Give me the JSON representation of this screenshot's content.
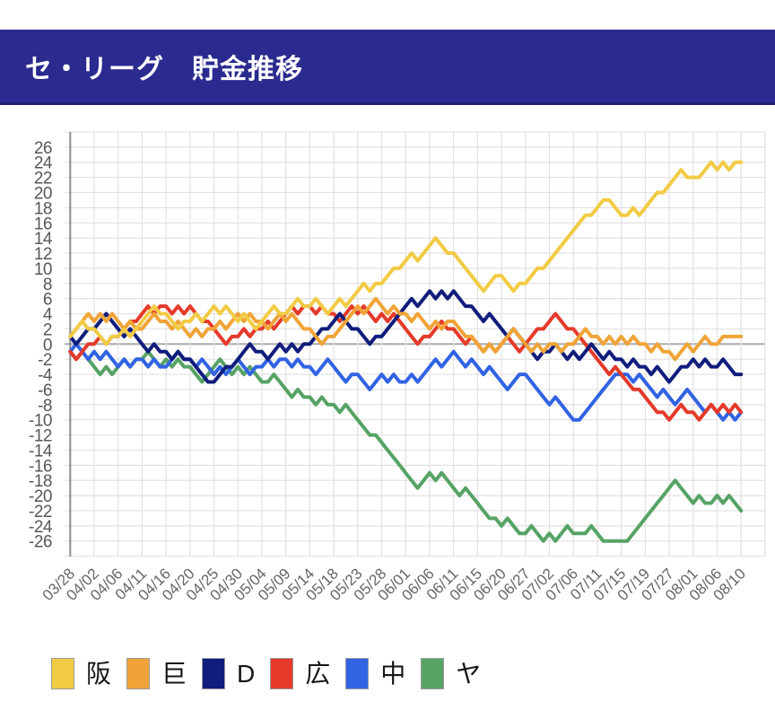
{
  "header": {
    "title": "セ・リーグ　貯金推移"
  },
  "chart_data": {
    "type": "line",
    "title": "セ・リーグ　貯金推移",
    "xlabel": "",
    "ylabel": "",
    "ylim": [
      -26,
      26
    ],
    "y_axis": {
      "min": -26,
      "max": 26,
      "step": 2,
      "labels": [
        "26",
        "24",
        "22",
        "20",
        "18",
        "16",
        "14",
        "12",
        "10",
        "8",
        "6",
        "4",
        "2",
        "0",
        "-2",
        "-4",
        "-6",
        "-8",
        "-10",
        "-12",
        "-14",
        "-16",
        "-18",
        "-20",
        "-22",
        "-24",
        "-26"
      ]
    },
    "x_axis": {
      "labels": [
        "03/28",
        "04/02",
        "04/06",
        "04/11",
        "04/16",
        "04/20",
        "04/25",
        "04/30",
        "05/04",
        "05/09",
        "05/14",
        "05/18",
        "05/23",
        "05/28",
        "06/01",
        "06/06",
        "06/11",
        "06/15",
        "06/20",
        "06/27",
        "07/02",
        "07/06",
        "07/11",
        "07/15",
        "07/19",
        "07/27",
        "08/01",
        "08/06",
        "08/10"
      ],
      "points_per_label": 4
    },
    "grid": true,
    "legend_position": "bottom",
    "series": [
      {
        "key": "hanshin",
        "name": "阪",
        "color": "#F2CB44",
        "values": [
          1,
          2,
          3,
          2,
          2,
          1,
          0,
          1,
          1,
          2,
          1,
          2,
          3,
          4,
          5,
          4,
          4,
          3,
          2,
          3,
          3,
          4,
          3,
          4,
          5,
          4,
          5,
          4,
          3,
          4,
          3,
          2,
          3,
          4,
          5,
          4,
          4,
          5,
          6,
          5,
          5,
          6,
          5,
          4,
          5,
          6,
          5,
          6,
          7,
          8,
          7,
          8,
          8,
          9,
          10,
          10,
          11,
          12,
          11,
          12,
          13,
          14,
          13,
          12,
          12,
          11,
          10,
          9,
          8,
          7,
          8,
          9,
          9,
          8,
          7,
          8,
          8,
          9,
          10,
          10,
          11,
          12,
          13,
          14,
          15,
          16,
          17,
          17,
          18,
          19,
          19,
          18,
          17,
          17,
          18,
          17,
          18,
          19,
          20,
          20,
          21,
          22,
          23,
          22,
          22,
          22,
          23,
          24,
          23,
          24,
          23,
          24,
          24
        ]
      },
      {
        "key": "kyojin",
        "name": "巨",
        "color": "#F0A437",
        "values": [
          1,
          2,
          3,
          4,
          3,
          4,
          3,
          4,
          3,
          2,
          3,
          2,
          2,
          3,
          4,
          3,
          3,
          2,
          3,
          2,
          1,
          2,
          1,
          2,
          2,
          3,
          2,
          3,
          4,
          3,
          4,
          3,
          3,
          2,
          3,
          4,
          3,
          4,
          3,
          2,
          2,
          1,
          0,
          1,
          1,
          2,
          3,
          4,
          5,
          4,
          5,
          6,
          5,
          4,
          5,
          4,
          4,
          3,
          4,
          3,
          2,
          3,
          2,
          3,
          3,
          2,
          1,
          1,
          0,
          -1,
          0,
          -1,
          0,
          1,
          2,
          1,
          0,
          -1,
          0,
          -1,
          0,
          0,
          -1,
          0,
          0,
          1,
          2,
          1,
          1,
          0,
          1,
          0,
          1,
          0,
          1,
          0,
          0,
          -1,
          0,
          -1,
          -1,
          -2,
          -1,
          0,
          -1,
          0,
          1,
          0,
          0,
          1,
          1,
          1,
          1
        ]
      },
      {
        "key": "dena",
        "name": "D",
        "color": "#101D7C",
        "values": [
          1,
          0,
          1,
          2,
          2,
          3,
          4,
          3,
          2,
          1,
          2,
          1,
          0,
          -1,
          0,
          -1,
          -1,
          -2,
          -1,
          -2,
          -2,
          -3,
          -4,
          -5,
          -5,
          -4,
          -3,
          -3,
          -2,
          -1,
          0,
          -1,
          -1,
          -2,
          -1,
          0,
          -1,
          0,
          -1,
          0,
          0,
          1,
          2,
          2,
          3,
          4,
          3,
          2,
          2,
          1,
          0,
          1,
          1,
          2,
          3,
          4,
          5,
          6,
          5,
          6,
          7,
          6,
          7,
          6,
          7,
          6,
          5,
          5,
          4,
          3,
          4,
          3,
          2,
          1,
          2,
          1,
          0,
          -1,
          -2,
          -1,
          -1,
          0,
          -1,
          -2,
          -1,
          -2,
          -1,
          0,
          -1,
          -2,
          -1,
          -2,
          -2,
          -3,
          -2,
          -3,
          -3,
          -4,
          -3,
          -4,
          -5,
          -4,
          -3,
          -3,
          -2,
          -3,
          -2,
          -3,
          -3,
          -2,
          -3,
          -4,
          -4
        ]
      },
      {
        "key": "hiroshima",
        "name": "広",
        "color": "#E53A2A",
        "values": [
          -1,
          -2,
          -1,
          0,
          0,
          1,
          0,
          1,
          1,
          2,
          3,
          3,
          4,
          5,
          4,
          5,
          5,
          4,
          5,
          4,
          5,
          4,
          3,
          3,
          2,
          1,
          0,
          1,
          1,
          2,
          1,
          2,
          2,
          3,
          2,
          3,
          4,
          5,
          4,
          5,
          5,
          4,
          5,
          4,
          4,
          3,
          4,
          5,
          4,
          5,
          4,
          3,
          4,
          3,
          4,
          3,
          2,
          1,
          0,
          1,
          1,
          2,
          3,
          2,
          2,
          1,
          0,
          1,
          0,
          -1,
          0,
          -1,
          0,
          1,
          0,
          -1,
          0,
          1,
          2,
          2,
          3,
          4,
          3,
          2,
          2,
          1,
          0,
          -1,
          -2,
          -3,
          -4,
          -3,
          -4,
          -5,
          -6,
          -6,
          -7,
          -8,
          -9,
          -9,
          -10,
          -9,
          -8,
          -9,
          -9,
          -10,
          -9,
          -8,
          -9,
          -8,
          -9,
          -8,
          -9
        ]
      },
      {
        "key": "chunichi",
        "name": "中",
        "color": "#3163E3",
        "values": [
          -1,
          0,
          -1,
          -2,
          -1,
          -2,
          -1,
          -2,
          -3,
          -2,
          -3,
          -2,
          -2,
          -3,
          -2,
          -3,
          -3,
          -2,
          -1,
          -2,
          -2,
          -3,
          -2,
          -3,
          -4,
          -3,
          -4,
          -3,
          -2,
          -3,
          -4,
          -3,
          -3,
          -2,
          -3,
          -2,
          -2,
          -3,
          -2,
          -3,
          -3,
          -4,
          -3,
          -2,
          -3,
          -4,
          -5,
          -4,
          -4,
          -5,
          -6,
          -5,
          -4,
          -5,
          -4,
          -5,
          -5,
          -4,
          -5,
          -4,
          -3,
          -2,
          -3,
          -2,
          -1,
          -2,
          -3,
          -2,
          -3,
          -4,
          -3,
          -4,
          -5,
          -6,
          -5,
          -4,
          -4,
          -5,
          -6,
          -7,
          -8,
          -7,
          -8,
          -9,
          -10,
          -10,
          -9,
          -8,
          -7,
          -6,
          -5,
          -4,
          -4,
          -4,
          -5,
          -4,
          -5,
          -6,
          -7,
          -6,
          -7,
          -8,
          -7,
          -6,
          -7,
          -8,
          -9,
          -8,
          -9,
          -10,
          -9,
          -10,
          -9
        ]
      },
      {
        "key": "yakult",
        "name": "ヤ",
        "color": "#56A365",
        "values": [
          -1,
          -2,
          -1,
          -2,
          -3,
          -4,
          -3,
          -4,
          -3,
          -2,
          -3,
          -2,
          -2,
          -1,
          -2,
          -3,
          -2,
          -3,
          -2,
          -3,
          -3,
          -4,
          -5,
          -4,
          -3,
          -2,
          -3,
          -4,
          -3,
          -4,
          -3,
          -4,
          -5,
          -5,
          -4,
          -5,
          -6,
          -7,
          -6,
          -7,
          -7,
          -8,
          -7,
          -8,
          -8,
          -9,
          -8,
          -9,
          -10,
          -11,
          -12,
          -12,
          -13,
          -14,
          -15,
          -16,
          -17,
          -18,
          -19,
          -18,
          -17,
          -18,
          -17,
          -18,
          -19,
          -20,
          -19,
          -20,
          -21,
          -22,
          -23,
          -23,
          -24,
          -23,
          -24,
          -25,
          -25,
          -24,
          -25,
          -26,
          -25,
          -26,
          -25,
          -24,
          -25,
          -25,
          -25,
          -24,
          -25,
          -26,
          -26,
          -26,
          -26,
          -26,
          -25,
          -24,
          -23,
          -22,
          -21,
          -20,
          -19,
          -18,
          -19,
          -20,
          -21,
          -20,
          -21,
          -21,
          -20,
          -21,
          -20,
          -21,
          -22
        ]
      }
    ]
  }
}
